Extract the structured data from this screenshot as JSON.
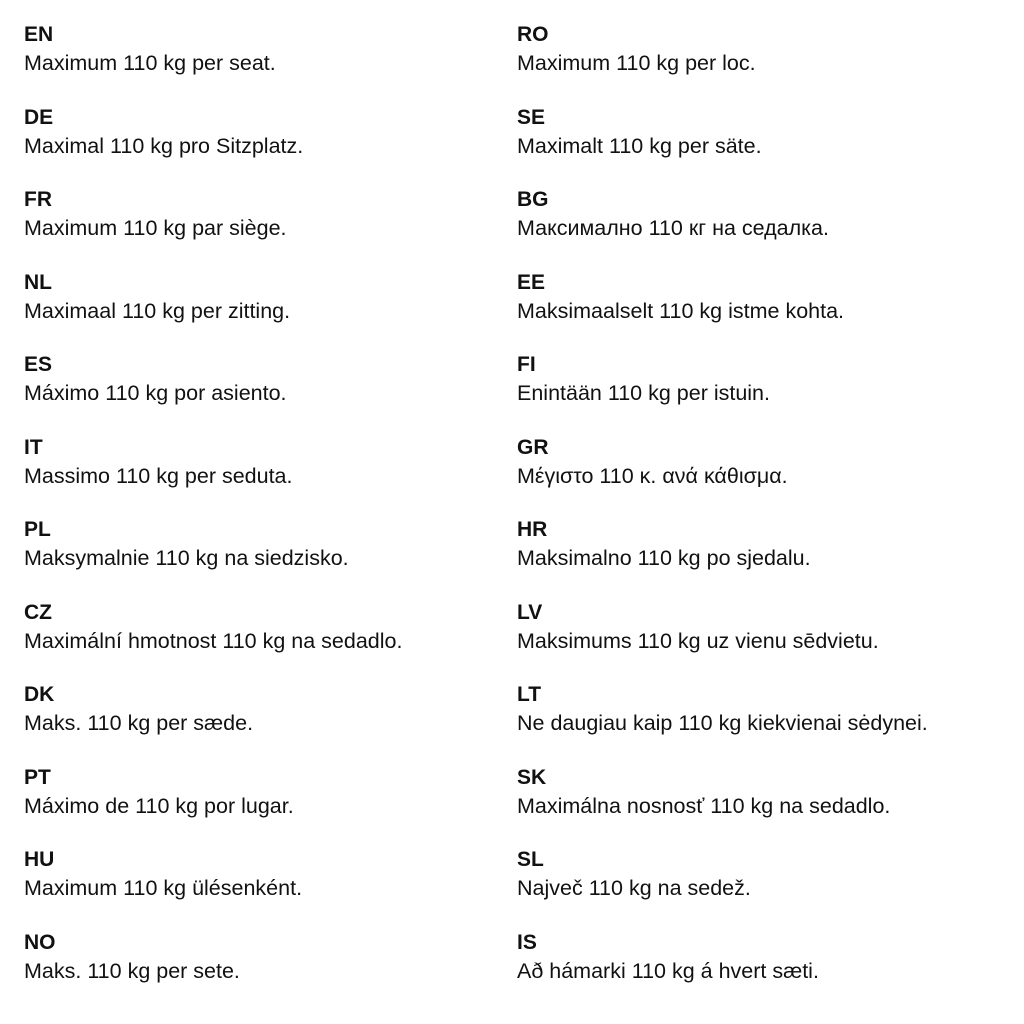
{
  "left": [
    {
      "code": "EN",
      "text": "Maximum 110 kg per seat."
    },
    {
      "code": "DE",
      "text": "Maximal 110 kg pro Sitzplatz."
    },
    {
      "code": "FR",
      "text": "Maximum 110 kg par siège."
    },
    {
      "code": "NL",
      "text": "Maximaal 110 kg per zitting."
    },
    {
      "code": "ES",
      "text": "Máximo 110 kg por asiento."
    },
    {
      "code": "IT",
      "text": "Massimo 110 kg per seduta."
    },
    {
      "code": "PL",
      "text": "Maksymalnie 110 kg na siedzisko."
    },
    {
      "code": "CZ",
      "text": "Maximální hmotnost 110 kg na sedadlo."
    },
    {
      "code": "DK",
      "text": "Maks. 110 kg per sæde."
    },
    {
      "code": "PT",
      "text": "Máximo de 110 kg por lugar."
    },
    {
      "code": "HU",
      "text": "Maximum 110 kg ülésenként."
    },
    {
      "code": "NO",
      "text": "Maks. 110 kg per sete."
    }
  ],
  "right": [
    {
      "code": "RO",
      "text": "Maximum 110 kg per loc."
    },
    {
      "code": "SE",
      "text": "Maximalt 110 kg per säte."
    },
    {
      "code": "BG",
      "text": "Максимално 110 кг на седалка."
    },
    {
      "code": "EE",
      "text": "Maksimaalselt 110 kg istme kohta."
    },
    {
      "code": "FI",
      "text": "Enintään 110 kg per istuin."
    },
    {
      "code": "GR",
      "text": "Μέγιστο 110 κ. ανά κάθισμα."
    },
    {
      "code": "HR",
      "text": "Maksimalno 110 kg po sjedalu."
    },
    {
      "code": "LV",
      "text": "Maksimums 110 kg uz vienu sēdvietu."
    },
    {
      "code": "LT",
      "text": "Ne daugiau kaip 110 kg kiekvienai sėdynei."
    },
    {
      "code": "SK",
      "text": "Maximálna nosnosť 110 kg na sedadlo."
    },
    {
      "code": "SL",
      "text": "Največ 110 kg na sedež."
    },
    {
      "code": "IS",
      "text": "Að hámarki 110 kg á hvert sæti."
    }
  ]
}
